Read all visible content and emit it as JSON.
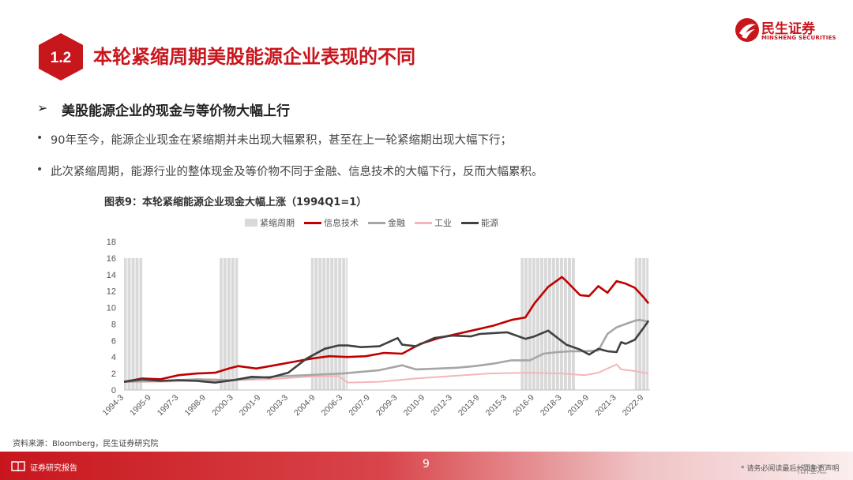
{
  "header": {
    "section_number": "1.2",
    "title": "本轮紧缩周期美股能源企业表现的不同"
  },
  "logo": {
    "name_cn": "民生证券",
    "name_en": "MINSHENG SECURITIES"
  },
  "subheading": "美股能源企业的现金与等价物大幅上行",
  "bullets": [
    "90年至今，能源企业现金在紧缩期并未出现大幅累积，甚至在上一轮紧缩期出现大幅下行；",
    "此次紧缩周期，能源行业的整体现金及等价物不同于金融、信息技术的大幅下行，反而大幅累积。"
  ],
  "figure_title": "图表9：本轮紧缩能源企业现金大幅上涨（1994Q1=1）",
  "source": "资料来源：Bloomberg，民生证券研究院",
  "footer": {
    "label": "证券研究报告",
    "page_number": "9",
    "disclaimer": "* 请务必阅读最后一页免责声明",
    "watermark": "格隆汇"
  },
  "colors": {
    "brand_red": "#c8161d",
    "info_tech": "#c00000",
    "finance": "#a6a6a6",
    "industrial": "#f4b6b8",
    "energy": "#404040",
    "tightening": "#d9d9d9"
  },
  "chart_data": {
    "type": "line",
    "ylim": [
      0,
      18
    ],
    "yticks": [
      "0",
      "2",
      "4",
      "6",
      "8",
      "10",
      "12",
      "14",
      "16",
      "18"
    ],
    "xtick_labels": [
      "1994-3",
      "1995-9",
      "1997-3",
      "1998-9",
      "2000-3",
      "2001-9",
      "2003-3",
      "2004-9",
      "2006-3",
      "2007-9",
      "2009-3",
      "2010-9",
      "2012-3",
      "2013-9",
      "2015-3",
      "2016-9",
      "2018-3",
      "2019-9",
      "2021-3",
      "2022-9"
    ],
    "tightening_periods": [
      [
        "1994-03",
        "1995-03"
      ],
      [
        "1999-06",
        "2000-06"
      ],
      [
        "2004-06",
        "2006-06"
      ],
      [
        "2015-12",
        "2018-12"
      ],
      [
        "2022-03",
        "2022-12"
      ]
    ],
    "legend": [
      "紧缩周期",
      "信息技术",
      "金融",
      "工业",
      "能源"
    ],
    "series": [
      {
        "name": "信息技术",
        "x": [
          "1994-03",
          "1995-03",
          "1996-03",
          "1997-03",
          "1998-03",
          "1999-03",
          "1999-12",
          "2000-06",
          "2001-06",
          "2002-06",
          "2003-06",
          "2004-06",
          "2005-06",
          "2006-06",
          "2007-06",
          "2008-06",
          "2009-06",
          "2010-06",
          "2011-06",
          "2012-06",
          "2013-06",
          "2014-06",
          "2015-06",
          "2016-03",
          "2016-09",
          "2017-06",
          "2018-03",
          "2018-06",
          "2019-03",
          "2019-09",
          "2020-03",
          "2020-09",
          "2021-03",
          "2021-09",
          "2022-03",
          "2022-09",
          "2022-12"
        ],
        "values": [
          1.0,
          1.4,
          1.3,
          1.8,
          2.0,
          2.1,
          2.6,
          2.9,
          2.6,
          3.0,
          3.4,
          3.8,
          4.1,
          4.0,
          4.1,
          4.5,
          4.4,
          5.6,
          6.3,
          6.8,
          7.3,
          7.8,
          8.5,
          8.8,
          10.5,
          12.5,
          13.7,
          13.2,
          11.5,
          11.4,
          12.6,
          11.8,
          13.2,
          12.9,
          12.4,
          11.2,
          10.5
        ]
      },
      {
        "name": "金融",
        "x": [
          "1994-03",
          "1996-03",
          "1998-03",
          "2000-03",
          "2002-03",
          "2004-03",
          "2006-03",
          "2008-03",
          "2009-06",
          "2010-03",
          "2011-06",
          "2012-06",
          "2013-06",
          "2014-06",
          "2015-06",
          "2016-06",
          "2017-03",
          "2017-12",
          "2018-09",
          "2019-06",
          "2020-03",
          "2020-09",
          "2021-03",
          "2021-09",
          "2022-03",
          "2022-06",
          "2022-12"
        ],
        "values": [
          1.0,
          1.1,
          1.3,
          1.2,
          1.6,
          1.8,
          2.0,
          2.4,
          3.0,
          2.5,
          2.6,
          2.7,
          2.9,
          3.2,
          3.6,
          3.6,
          4.4,
          4.6,
          4.7,
          4.7,
          4.8,
          6.8,
          7.6,
          8.0,
          8.4,
          8.5,
          8.3
        ]
      },
      {
        "name": "工业",
        "x": [
          "1994-03",
          "1996-03",
          "1998-03",
          "2000-03",
          "2002-03",
          "2004-03",
          "2005-12",
          "2006-06",
          "2008-03",
          "2010-03",
          "2012-03",
          "2014-03",
          "2016-03",
          "2018-03",
          "2019-06",
          "2020-03",
          "2020-09",
          "2021-03",
          "2021-06",
          "2022-03",
          "2022-12"
        ],
        "values": [
          1.0,
          1.0,
          1.1,
          1.2,
          1.3,
          1.6,
          1.7,
          0.9,
          1.0,
          1.4,
          1.7,
          2.0,
          2.1,
          2.0,
          1.8,
          2.1,
          2.6,
          3.1,
          2.5,
          2.3,
          2.0
        ]
      },
      {
        "name": "能源",
        "x": [
          "1994-03",
          "1995-03",
          "1996-03",
          "1997-03",
          "1998-03",
          "1999-03",
          "2000-03",
          "2001-03",
          "2002-03",
          "2003-03",
          "2004-03",
          "2005-03",
          "2005-12",
          "2006-06",
          "2007-03",
          "2008-03",
          "2009-03",
          "2009-06",
          "2010-03",
          "2011-03",
          "2012-03",
          "2013-03",
          "2013-09",
          "2014-06",
          "2015-03",
          "2016-03",
          "2016-09",
          "2017-06",
          "2018-06",
          "2019-03",
          "2019-09",
          "2020-03",
          "2020-09",
          "2021-03",
          "2021-06",
          "2021-09",
          "2022-03",
          "2022-09",
          "2022-12"
        ],
        "values": [
          1.0,
          1.3,
          1.1,
          1.2,
          1.1,
          0.9,
          1.2,
          1.6,
          1.5,
          2.1,
          3.8,
          5.0,
          5.4,
          5.4,
          5.2,
          5.3,
          6.3,
          5.5,
          5.3,
          6.3,
          6.6,
          6.5,
          6.8,
          6.9,
          7.0,
          6.2,
          6.5,
          7.2,
          5.5,
          4.9,
          4.3,
          5.0,
          4.7,
          4.6,
          5.8,
          5.6,
          6.1,
          7.6,
          8.4
        ]
      }
    ]
  }
}
